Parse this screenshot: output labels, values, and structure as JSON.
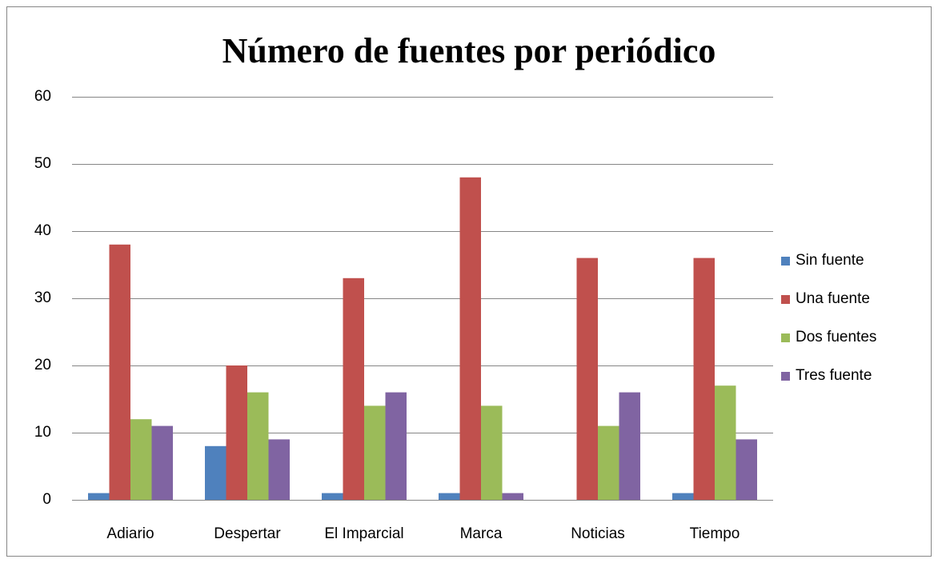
{
  "chart_data": {
    "type": "bar",
    "title": "Número de fuentes por periódico",
    "categories": [
      "Adiario",
      "Despertar",
      "El Imparcial",
      "Marca",
      "Noticias",
      "Tiempo"
    ],
    "series": [
      {
        "name": "Sin fuente",
        "color": "#4f81bd",
        "values": [
          1,
          8,
          1,
          1,
          0,
          1
        ]
      },
      {
        "name": "Una fuente",
        "color": "#c0504d",
        "values": [
          38,
          20,
          33,
          48,
          36,
          36
        ]
      },
      {
        "name": "Dos fuentes",
        "color": "#9bbb59",
        "values": [
          12,
          16,
          14,
          14,
          11,
          17
        ]
      },
      {
        "name": "Tres fuente",
        "color": "#8064a2",
        "values": [
          11,
          9,
          16,
          1,
          16,
          9
        ]
      }
    ],
    "ylim": [
      0,
      60
    ],
    "yticks": [
      0,
      10,
      20,
      30,
      40,
      50,
      60
    ],
    "grid": true,
    "legend": "right"
  }
}
